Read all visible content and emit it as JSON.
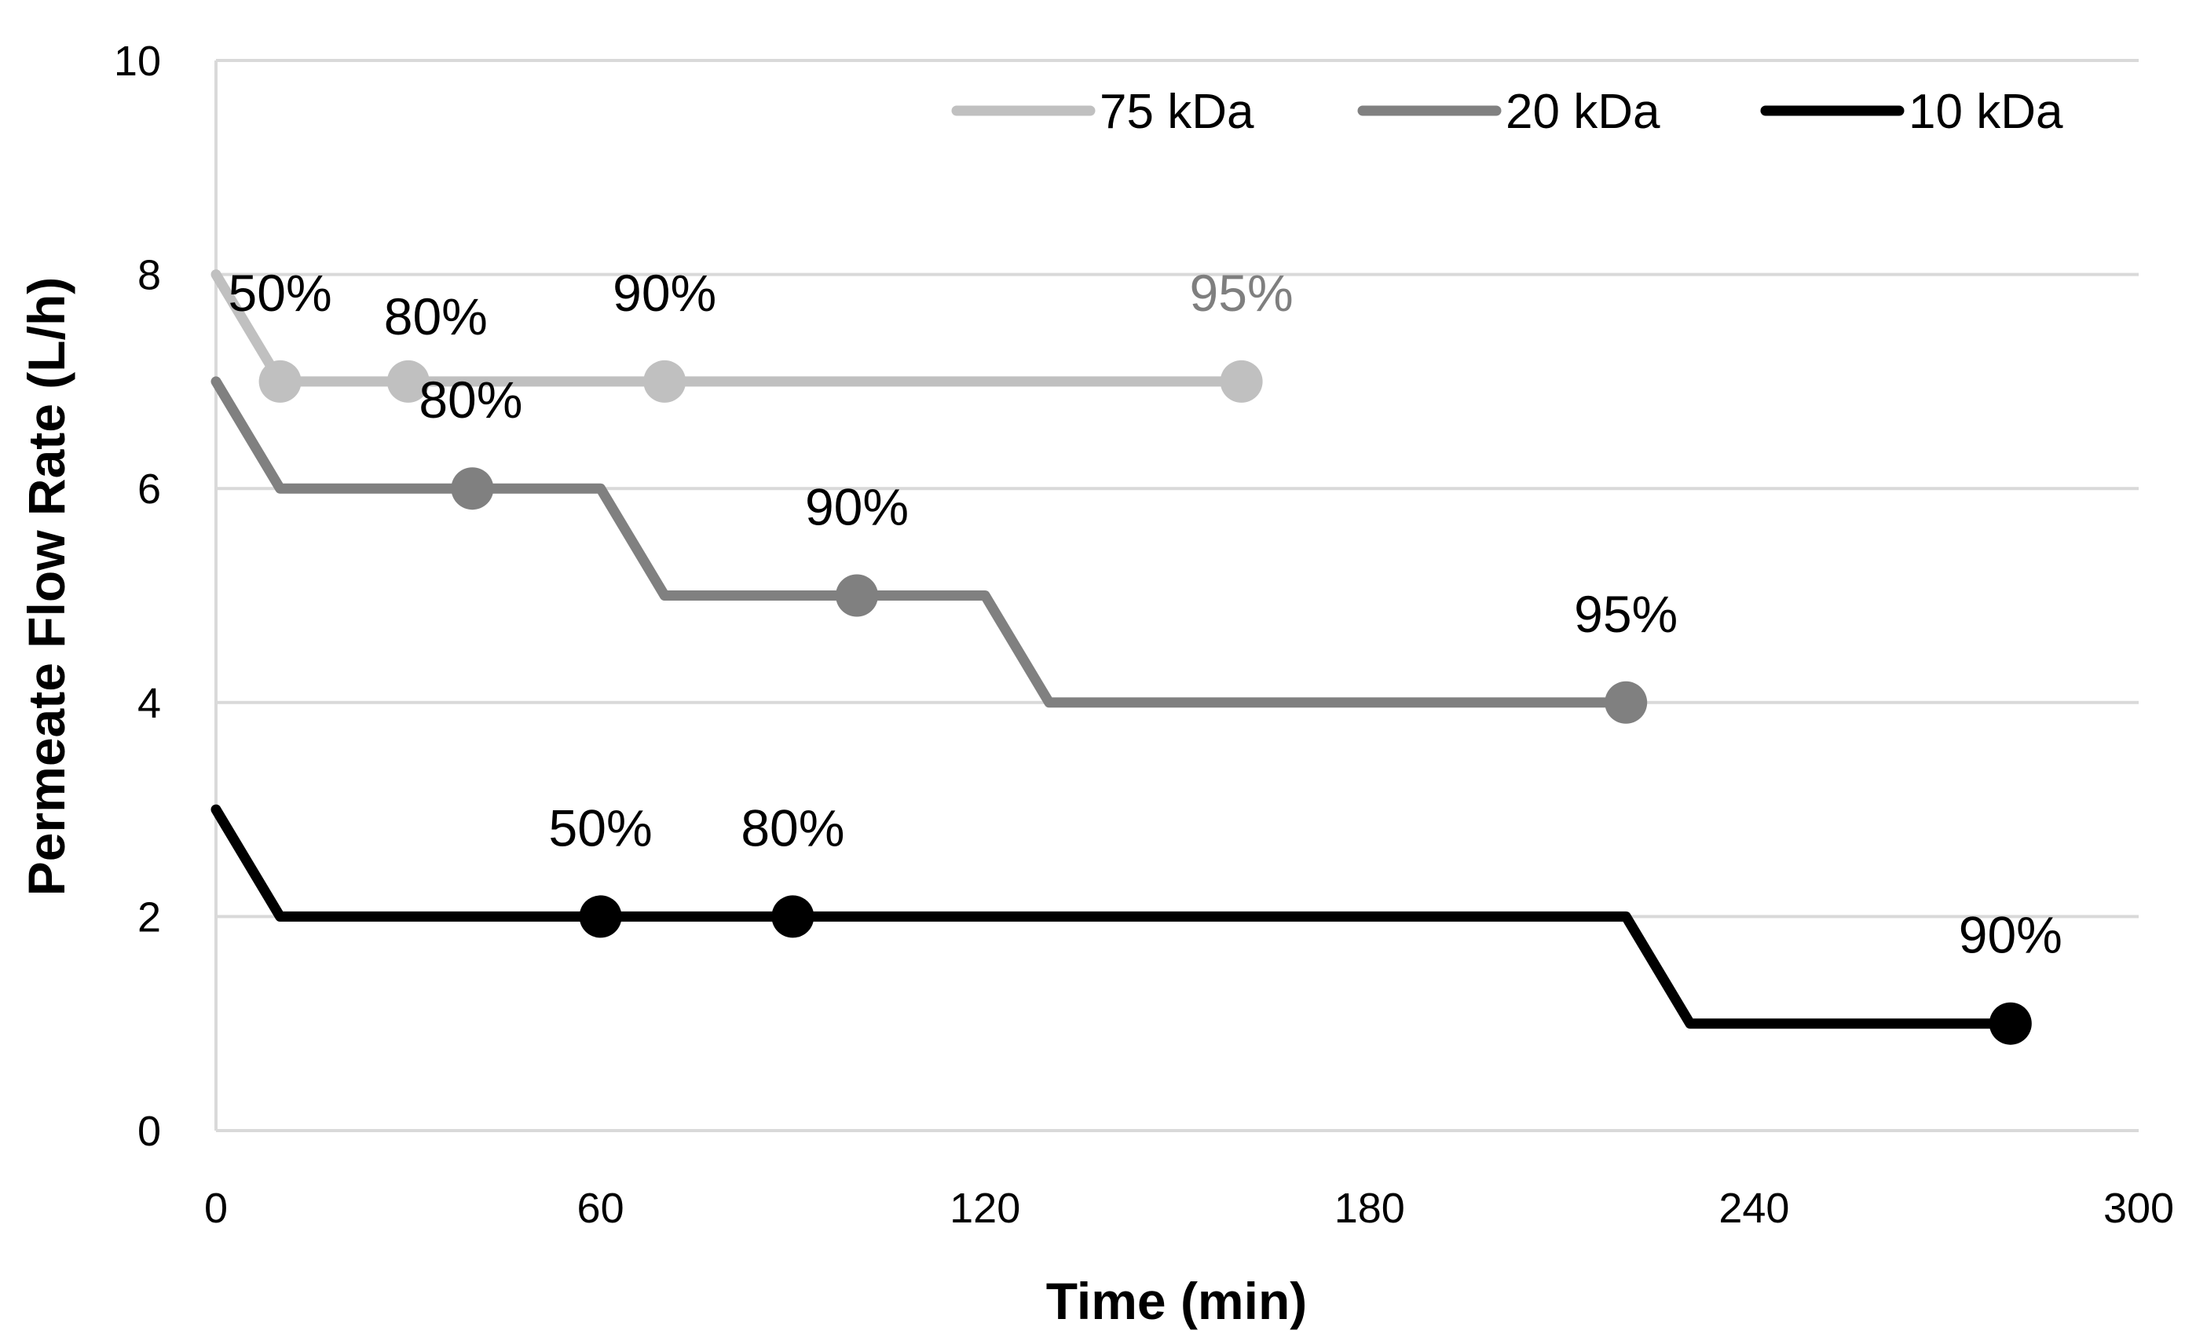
{
  "chart_data": {
    "type": "line",
    "title": "",
    "xlabel": "Time (min)",
    "ylabel": "Permeate Flow Rate (L/h)",
    "xlim": [
      0,
      300
    ],
    "ylim": [
      0,
      10
    ],
    "xticks": [
      "0",
      "60",
      "120",
      "180",
      "240",
      "300"
    ],
    "xtick_values": [
      0,
      60,
      120,
      180,
      240,
      300
    ],
    "yticks": [
      "0",
      "2",
      "4",
      "6",
      "8",
      "10"
    ],
    "ytick_values": [
      0,
      2,
      4,
      6,
      8,
      10
    ],
    "grid": "horizontal",
    "legend_position": "top-right",
    "series": [
      {
        "name": "75 kDa",
        "color": "#c0c0c0",
        "x": [
          0,
          10,
          160
        ],
        "y": [
          8,
          7,
          7
        ],
        "markers": [
          {
            "x": 10,
            "y": 7,
            "label": "50%"
          },
          {
            "x": 30,
            "y": 7,
            "label": "80%"
          },
          {
            "x": 70,
            "y": 7,
            "label": "90%"
          },
          {
            "x": 160,
            "y": 7,
            "label": "95%"
          }
        ]
      },
      {
        "name": "20 kDa",
        "color": "#808080",
        "x": [
          0,
          10,
          60,
          70,
          120,
          130,
          220
        ],
        "y": [
          7,
          6,
          6,
          5,
          5,
          4,
          4
        ],
        "markers": [
          {
            "x": 40,
            "y": 6,
            "label": "80%"
          },
          {
            "x": 100,
            "y": 5,
            "label": "90%"
          },
          {
            "x": 220,
            "y": 4,
            "label": "95%"
          }
        ]
      },
      {
        "name": "10 kDa",
        "color": "#000000",
        "x": [
          0,
          10,
          220,
          230,
          280
        ],
        "y": [
          3,
          2,
          2,
          1,
          1
        ],
        "markers": [
          {
            "x": 60,
            "y": 2,
            "label": "50%"
          },
          {
            "x": 90,
            "y": 2,
            "label": "80%"
          },
          {
            "x": 280,
            "y": 1,
            "label": "90%"
          }
        ]
      }
    ]
  }
}
